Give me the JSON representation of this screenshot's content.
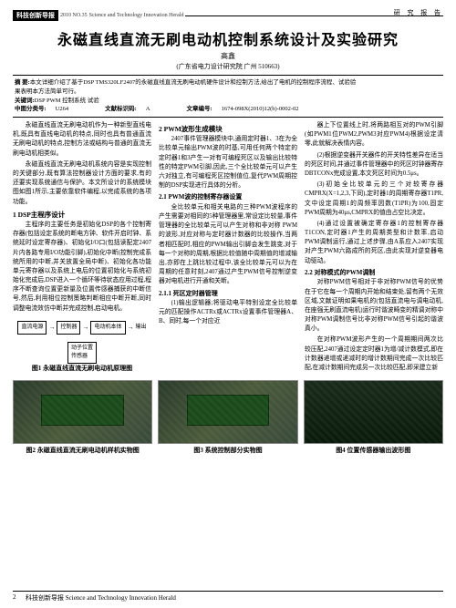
{
  "journal": {
    "tag": "科技创新导报",
    "issue": "2010 NO.35",
    "eng": "Science and Technology Innovation Herald",
    "section": "研 究 报 告"
  },
  "title": "永磁直线直流无刷电动机控制系统设计及实验研究",
  "author": "高鑫",
  "affil": "(广东省电力设计研究院  广州  510663)",
  "abs": {
    "l1a": "摘 要:",
    "l1b": "本文详细介绍了基于DSP TMS320LF2407的永磁直线直流无刷电动机硬件设计和控制方法,给出了电机的控制程序流程、试验验",
    "l2": "果表明本方法简单可行。",
    "l3a": "关键词:",
    "l3b": "DSP  PWM  控制系统   试验",
    "l4a": "中图分类号:",
    "l4b": "U264",
    "l4c": "文献标识码:",
    "l4d": "A",
    "l4e": "文章编号:",
    "l4f": "1674-098X(2010)12(b)-0002-02"
  },
  "c1": {
    "p1": "永磁直线直流无刷电动机作为一种新型直线电机,既具有直线电动机的特点,同时也具有普通直流无刷电动机的特点,控制方法或结构与普通的直流无刷电动机相类似。",
    "p2": "永磁直线直流无刷电动机系统内容是实现控制的关键部分,既有算法控制器设计方面的要求,有的还要实现系统通信与保护。本文所设计的系统模块图如图1所示,主要依靠软件编程,以完成系统的各项功能。",
    "h1": "1 DSP主程序设计",
    "p3": "主程序的主要任务是初始化DSP的各个控制寄存器(包括设定系统的断电方钟、软件开启时钟、系统延时设定寄存器)、初始化I/O口(包括读配定2407片内各路专用I/O功能引脚),初始化中断(控制完成系统所用的中断,并关放置全局中断)、初始化各功能单元寄存器以及系统上电后的位置初始化与系统初始化完成后,DSP进入一个循环等待状态应用过程,程序不断查询位置更新量及位置传感器捕获的中断信号,然后,利用相位控制策略判断相应中断开断,同时调整电流效仿中断并完成控制,启动电机。",
    "fig1": {
      "b1": "直流电源",
      "b2": "控制器",
      "b3": "电动机本体",
      "b4": "动子位置\n传感器",
      "out": "输出",
      "cap": "图1  永磁直线直流无刷电动机原理图"
    }
  },
  "c2": {
    "h1": "2 PWM波形生成模块",
    "p1": "2407事件管理器模块中,通用定时器1、3在为全比较单元输出PWM波的时基,可用任何两个特定的定时器1和3产生一对有可编程死区以及输出比较特性的特定PWM引脚,因此,三个全比较单元可以产生六对独立,有可编程死区控制值位,复代PWM周期控制的DSP实现进行具体的分析。",
    "h2": "2.1 PWM波的控制寄存器设置",
    "p2": "全比较单元和相关电路的三种PWM波程序的产生需要对相同的5种管理器里,常设定比较量,事件管理器的全比较单元可以产生对称和非对称 PWM 的波形,对应对称与定时器计数器的比较操作,当两者相匹配时,相应的PWM输出引脚会发生跳变,对于每一个对称的周期,根据比较值随中周期值的增减输出,亦即在上跳比较过程中,该全比较单元可以为在周期的任意时刻,2407通过产生PWM信号控制逆变器对电机进行开通和关断。",
    "h3": "2.1.1 死区定时器管理",
    "p3": "(1)输出逻辑器;将驱动电平特别设定全比较单元的匹配操作ACTRx或ACTRx设置事件管理器A、B、同时,每一个对应近"
  },
  "c3": {
    "p1": "器上下位置线上时,将两路相互对的PWM引脚(如PWM1位PWM2,PWM3对应PWM4)根据设定清零,此就解决表情内容。",
    "p2": "(2)根据逆变器开关器件的开关特性差异在适当的死区时间,并通过事件管理器中的死区时钟器寄存DBTCONx完成设置,本文死区时间为0.5μs。",
    "p3": "(3)初始全比较单元的三个对较寄存器CMPRX(X=1,2,3,下同),定时器1的周期寄存器T1PR,文中设定周期1的周频率因数(T1PR)为100,固定PWM周期为40μs,CMPRX的值由占空比决定。",
    "p4": "(4)通过设置被确定寄存器1的控制寄存器T1CON,定时器1产生的周期类型和计数率,启动PWM调制运行,通过上述步骤,由A系应入2407实现对产生PWM六路成所的死区,由此实现对逆变器电动驱动。",
    "h1": "2.2 对称模式的PWM调制",
    "p5": "对称PWM信号相对于非对称PWM信号的优势在于它在每一个周期内开始和结束处,留有两个无效区域,文献证明如果电机的(包括直流电与调电动机,在座强无刷直流电机)运行时谐波畸变的精调对称中对称PWM调制信号比非对称PWM信号引起的谐波真小。",
    "p6": "在对称PWM波形产生的一个周期期间两次比较压配,2407通过设定定时器1为增/减计数模式,即在计数器递增或递减时的增计数期间完成一次比较匹配,在减计数期间完成另一次比较匹配,即采建立新"
  },
  "figs": {
    "f2": "图2  永磁直线直流无刷电动机样机实物图",
    "f3": "图3  系统控制部分实物图",
    "f4": "图4  位置传感器输出波形图"
  },
  "footer": {
    "page": "2",
    "text": "科技创新导报 Science and Technology Innovation Herald"
  }
}
